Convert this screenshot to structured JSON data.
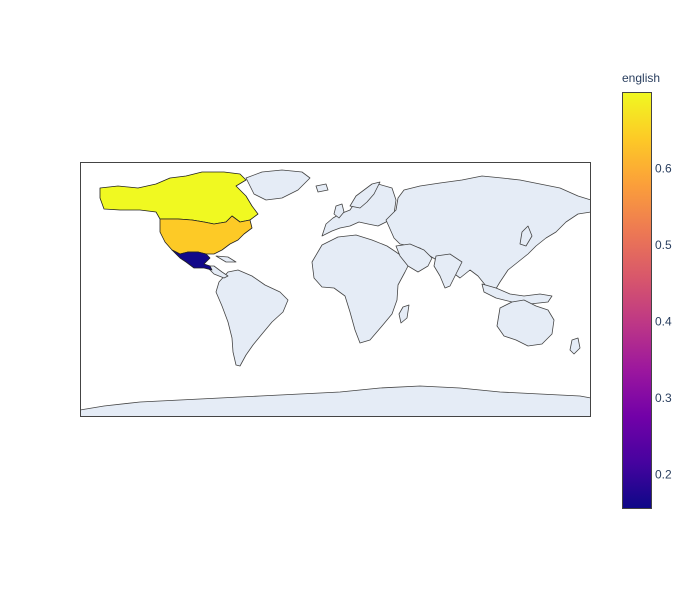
{
  "map": {
    "projection": "equirectangular",
    "colorscale": "plasma",
    "countries": [
      {
        "code": "CAN",
        "english": 0.7
      },
      {
        "code": "USA",
        "english": 0.64
      },
      {
        "code": "MEX",
        "english": 0.16
      }
    ]
  },
  "colorbar": {
    "title": "english",
    "min": 0.155,
    "max": 0.7,
    "ticks": [
      {
        "value": 0.2,
        "label": "0.2"
      },
      {
        "value": 0.3,
        "label": "0.3"
      },
      {
        "value": 0.4,
        "label": "0.4"
      },
      {
        "value": 0.5,
        "label": "0.5"
      },
      {
        "value": 0.6,
        "label": "0.6"
      }
    ]
  },
  "colors": {
    "land": "#e5ecf6",
    "coast": "#444444",
    "plasma": [
      "#0d0887",
      "#46039f",
      "#7201a8",
      "#9c179e",
      "#bd3786",
      "#d8576b",
      "#ed7953",
      "#fb9f3a",
      "#fdca26",
      "#f0f921"
    ]
  }
}
